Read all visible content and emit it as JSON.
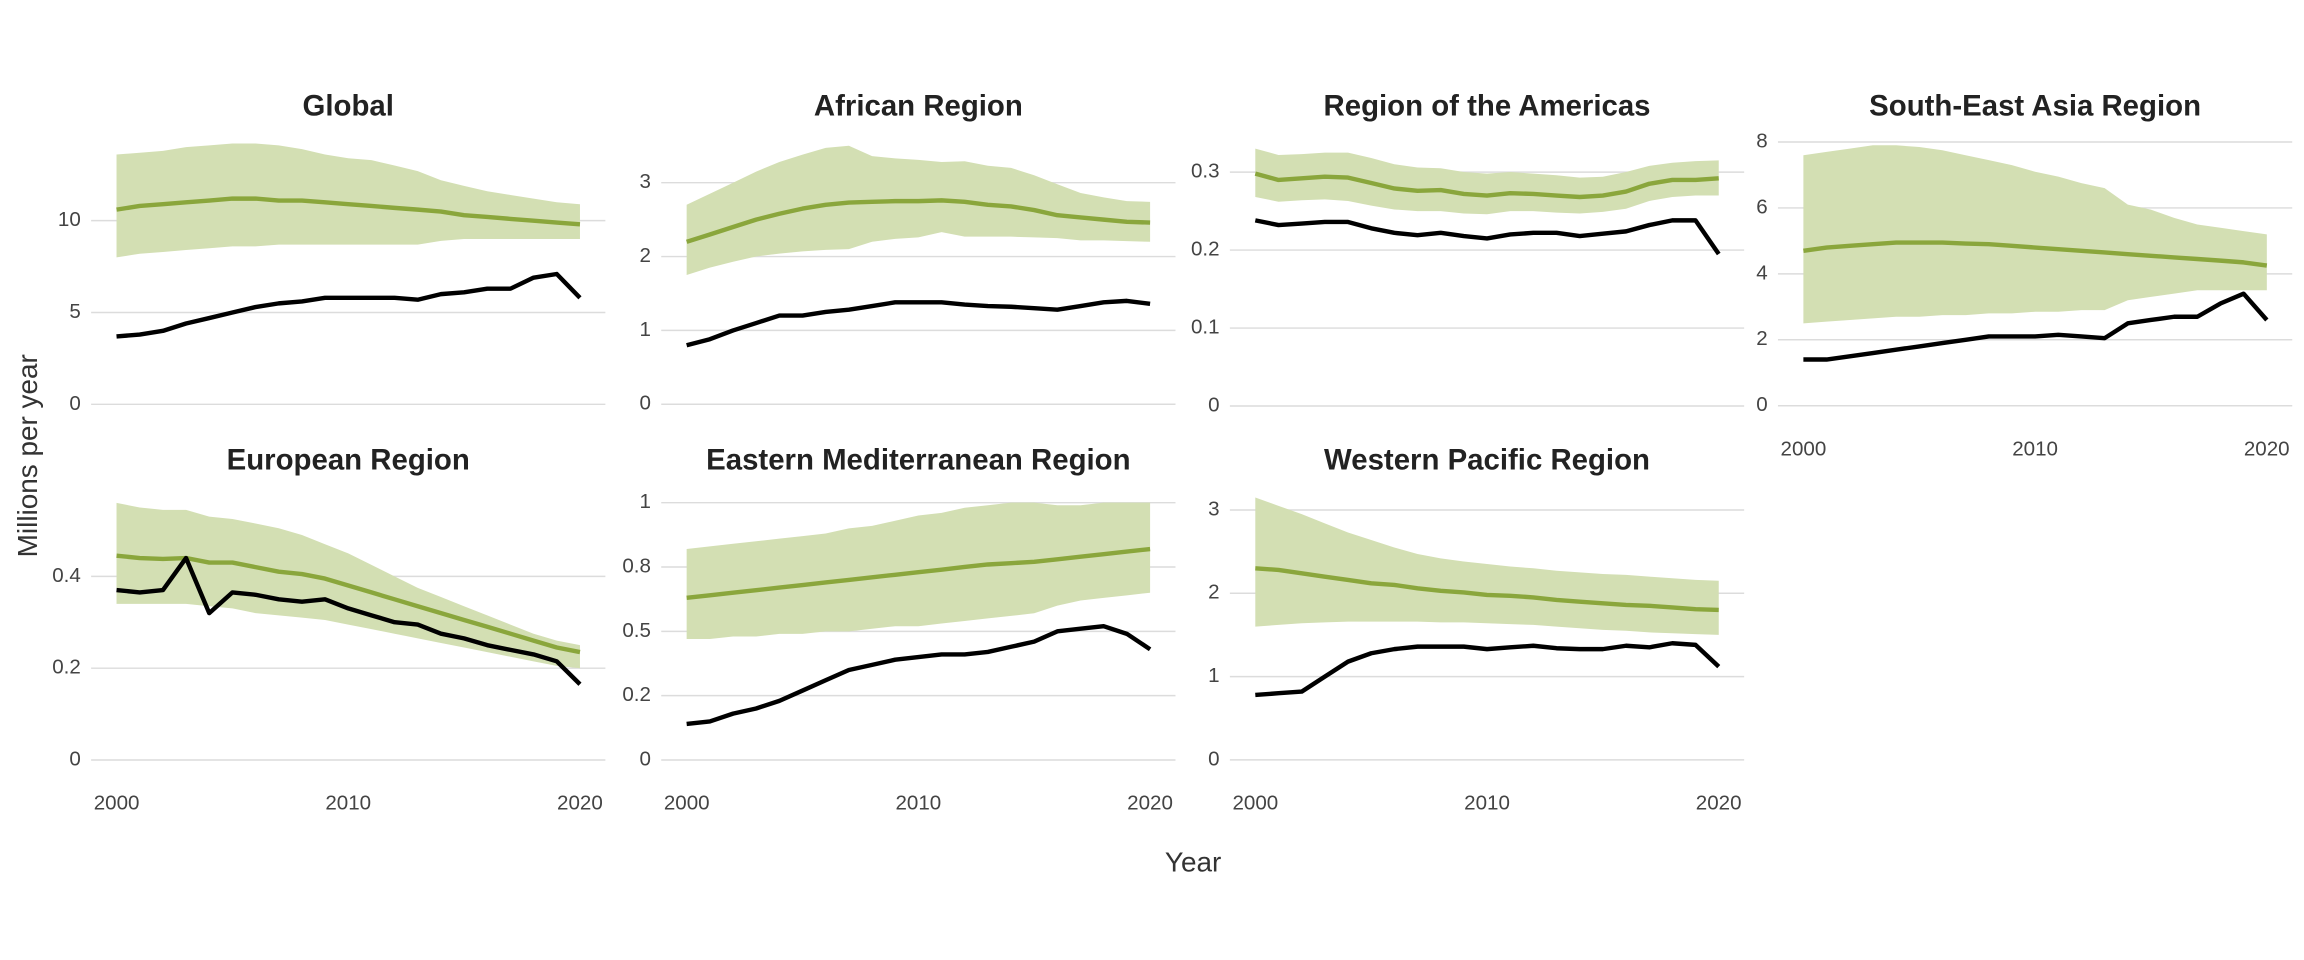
{
  "y_label": "Millions per year",
  "x_label": "Year",
  "chart_data": [
    {
      "type": "line",
      "title": "Global",
      "x": [
        2000,
        2001,
        2002,
        2003,
        2004,
        2005,
        2006,
        2007,
        2008,
        2009,
        2010,
        2011,
        2012,
        2013,
        2014,
        2015,
        2016,
        2017,
        2018,
        2019,
        2020
      ],
      "xlim": [
        1998.9,
        2021.1
      ],
      "ylim": [
        -0.56,
        14.64
      ],
      "yticks": [
        0,
        5,
        10
      ],
      "grid": true,
      "band_color": "#d3dfb3",
      "series": [
        {
          "color": "#8aa63c",
          "values": [
            10.6,
            10.8,
            10.9,
            11.0,
            11.1,
            11.2,
            11.2,
            11.1,
            11.1,
            11.0,
            10.9,
            10.8,
            10.7,
            10.6,
            10.5,
            10.3,
            10.2,
            10.1,
            10.0,
            9.9,
            9.8
          ],
          "lower": [
            8.0,
            8.2,
            8.3,
            8.4,
            8.5,
            8.6,
            8.6,
            8.7,
            8.7,
            8.7,
            8.7,
            8.7,
            8.7,
            8.7,
            8.9,
            9.0,
            9.0,
            9.0,
            9.0,
            9.0,
            9.0
          ],
          "upper": [
            13.6,
            13.7,
            13.8,
            14.0,
            14.1,
            14.2,
            14.2,
            14.1,
            13.9,
            13.6,
            13.4,
            13.3,
            13.0,
            12.7,
            12.2,
            11.9,
            11.6,
            11.4,
            11.2,
            11.0,
            10.9
          ]
        },
        {
          "color": "#000000",
          "values": [
            3.7,
            3.8,
            4.0,
            4.4,
            4.7,
            5.0,
            5.3,
            5.5,
            5.6,
            5.8,
            5.8,
            5.8,
            5.8,
            5.7,
            6.0,
            6.1,
            6.3,
            6.3,
            6.9,
            7.1,
            5.8
          ]
        }
      ]
    },
    {
      "type": "line",
      "title": "African Region",
      "x": [
        2000,
        2001,
        2002,
        2003,
        2004,
        2005,
        2006,
        2007,
        2008,
        2009,
        2010,
        2011,
        2012,
        2013,
        2014,
        2015,
        2016,
        2017,
        2018,
        2019,
        2020
      ],
      "xlim": [
        1998.9,
        2021.1
      ],
      "ylim": [
        -0.14,
        3.64
      ],
      "yticks": [
        0,
        1,
        2,
        3
      ],
      "grid": true,
      "band_color": "#d3dfb3",
      "series": [
        {
          "color": "#8aa63c",
          "values": [
            2.2,
            2.3,
            2.4,
            2.5,
            2.58,
            2.65,
            2.7,
            2.73,
            2.74,
            2.75,
            2.75,
            2.76,
            2.74,
            2.7,
            2.68,
            2.63,
            2.56,
            2.53,
            2.5,
            2.47,
            2.46
          ],
          "lower": [
            1.75,
            1.85,
            1.93,
            2.0,
            2.04,
            2.07,
            2.09,
            2.1,
            2.2,
            2.24,
            2.26,
            2.33,
            2.27,
            2.27,
            2.27,
            2.26,
            2.25,
            2.22,
            2.22,
            2.21,
            2.2
          ],
          "upper": [
            2.7,
            2.85,
            3.0,
            3.15,
            3.28,
            3.38,
            3.47,
            3.5,
            3.36,
            3.33,
            3.31,
            3.28,
            3.29,
            3.23,
            3.2,
            3.1,
            2.98,
            2.86,
            2.8,
            2.75,
            2.74
          ]
        },
        {
          "color": "#000000",
          "values": [
            0.8,
            0.88,
            1.0,
            1.1,
            1.2,
            1.2,
            1.25,
            1.28,
            1.33,
            1.38,
            1.38,
            1.38,
            1.35,
            1.33,
            1.32,
            1.3,
            1.28,
            1.33,
            1.38,
            1.4,
            1.36
          ]
        }
      ]
    },
    {
      "type": "line",
      "title": "Region of the Americas",
      "x": [
        2000,
        2001,
        2002,
        2003,
        2004,
        2005,
        2006,
        2007,
        2008,
        2009,
        2010,
        2011,
        2012,
        2013,
        2014,
        2015,
        2016,
        2017,
        2018,
        2019,
        2020
      ],
      "xlim": [
        1998.9,
        2021.1
      ],
      "ylim": [
        -0.011,
        0.347
      ],
      "yticks": [
        0,
        0.1,
        0.2,
        0.3
      ],
      "grid": true,
      "band_color": "#d3dfb3",
      "series": [
        {
          "color": "#8aa63c",
          "values": [
            0.298,
            0.29,
            0.292,
            0.294,
            0.293,
            0.286,
            0.279,
            0.276,
            0.277,
            0.272,
            0.27,
            0.273,
            0.272,
            0.27,
            0.268,
            0.27,
            0.275,
            0.285,
            0.29,
            0.29,
            0.292
          ],
          "lower": [
            0.268,
            0.262,
            0.264,
            0.265,
            0.263,
            0.257,
            0.252,
            0.25,
            0.25,
            0.247,
            0.246,
            0.25,
            0.25,
            0.248,
            0.247,
            0.249,
            0.253,
            0.263,
            0.268,
            0.27,
            0.27
          ],
          "upper": [
            0.33,
            0.322,
            0.323,
            0.325,
            0.325,
            0.318,
            0.31,
            0.306,
            0.305,
            0.3,
            0.298,
            0.3,
            0.298,
            0.296,
            0.293,
            0.294,
            0.3,
            0.308,
            0.312,
            0.314,
            0.315
          ]
        },
        {
          "color": "#000000",
          "values": [
            0.238,
            0.232,
            0.234,
            0.236,
            0.236,
            0.228,
            0.222,
            0.219,
            0.222,
            0.218,
            0.215,
            0.22,
            0.222,
            0.222,
            0.218,
            0.221,
            0.224,
            0.232,
            0.238,
            0.238,
            0.195
          ]
        }
      ]
    },
    {
      "type": "line",
      "title": "South-East Asia Region",
      "x": [
        2000,
        2001,
        2002,
        2003,
        2004,
        2005,
        2006,
        2007,
        2008,
        2009,
        2010,
        2011,
        2012,
        2013,
        2014,
        2015,
        2016,
        2017,
        2018,
        2019,
        2020
      ],
      "xlim": [
        1998.9,
        2021.1
      ],
      "xticks": [
        2000,
        2010,
        2020
      ],
      "ylim": [
        -0.27,
        8.2
      ],
      "yticks": [
        0,
        2,
        4,
        6,
        8
      ],
      "grid": true,
      "band_color": "#d3dfb3",
      "series": [
        {
          "color": "#8aa63c",
          "values": [
            4.7,
            4.8,
            4.85,
            4.9,
            4.95,
            4.95,
            4.95,
            4.92,
            4.9,
            4.85,
            4.8,
            4.75,
            4.7,
            4.65,
            4.6,
            4.55,
            4.5,
            4.45,
            4.4,
            4.35,
            4.25
          ],
          "lower": [
            2.5,
            2.55,
            2.6,
            2.65,
            2.7,
            2.7,
            2.75,
            2.75,
            2.8,
            2.8,
            2.85,
            2.85,
            2.9,
            2.9,
            3.2,
            3.3,
            3.4,
            3.5,
            3.5,
            3.5,
            3.5
          ],
          "upper": [
            7.6,
            7.7,
            7.8,
            7.9,
            7.9,
            7.85,
            7.75,
            7.6,
            7.45,
            7.3,
            7.1,
            6.95,
            6.75,
            6.6,
            6.1,
            5.95,
            5.7,
            5.5,
            5.4,
            5.3,
            5.2
          ]
        },
        {
          "color": "#000000",
          "values": [
            1.4,
            1.4,
            1.5,
            1.6,
            1.7,
            1.8,
            1.9,
            2.0,
            2.1,
            2.1,
            2.1,
            2.15,
            2.1,
            2.05,
            2.5,
            2.6,
            2.7,
            2.7,
            3.1,
            3.4,
            2.6
          ]
        }
      ]
    },
    {
      "type": "line",
      "title": "European Region",
      "x": [
        2000,
        2001,
        2002,
        2003,
        2004,
        2005,
        2006,
        2007,
        2008,
        2009,
        2010,
        2011,
        2012,
        2013,
        2014,
        2015,
        2016,
        2017,
        2018,
        2019,
        2020
      ],
      "xlim": [
        1998.9,
        2021.1
      ],
      "xticks": [
        2000,
        2010,
        2020
      ],
      "ylim": [
        -0.019,
        0.589
      ],
      "yticks": [
        0,
        0.2,
        0.4
      ],
      "grid": true,
      "band_color": "#d3dfb3",
      "series": [
        {
          "color": "#8aa63c",
          "values": [
            0.445,
            0.44,
            0.438,
            0.44,
            0.43,
            0.43,
            0.42,
            0.41,
            0.405,
            0.395,
            0.38,
            0.365,
            0.35,
            0.335,
            0.32,
            0.305,
            0.29,
            0.275,
            0.26,
            0.245,
            0.235
          ],
          "lower": [
            0.34,
            0.34,
            0.34,
            0.34,
            0.335,
            0.33,
            0.32,
            0.315,
            0.31,
            0.305,
            0.295,
            0.285,
            0.275,
            0.265,
            0.255,
            0.245,
            0.235,
            0.225,
            0.215,
            0.205,
            0.2
          ],
          "upper": [
            0.56,
            0.55,
            0.545,
            0.545,
            0.53,
            0.525,
            0.515,
            0.505,
            0.49,
            0.47,
            0.45,
            0.425,
            0.4,
            0.375,
            0.355,
            0.335,
            0.315,
            0.295,
            0.275,
            0.26,
            0.25
          ]
        },
        {
          "color": "#000000",
          "values": [
            0.37,
            0.365,
            0.37,
            0.44,
            0.32,
            0.365,
            0.36,
            0.35,
            0.345,
            0.35,
            0.33,
            0.315,
            0.3,
            0.295,
            0.275,
            0.265,
            0.25,
            0.24,
            0.23,
            0.215,
            0.165
          ]
        }
      ]
    },
    {
      "type": "line",
      "title": "Eastern Mediterranean Region",
      "x": [
        2000,
        2001,
        2002,
        2003,
        2004,
        2005,
        2006,
        2007,
        2008,
        2009,
        2010,
        2011,
        2012,
        2013,
        2014,
        2015,
        2016,
        2017,
        2018,
        2019,
        2020
      ],
      "xlim": [
        1998.9,
        2021.1
      ],
      "xticks": [
        2000,
        2010,
        2020
      ],
      "ylim": [
        -0.034,
        1.051
      ],
      "yticks": [
        0,
        {
          "value": 0.25,
          "label": "0.2"
        },
        {
          "value": 0.5,
          "label": "0.5"
        },
        {
          "value": 0.75,
          "label": "0.8"
        },
        1
      ],
      "grid": true,
      "band_color": "#d3dfb3",
      "series": [
        {
          "color": "#8aa63c",
          "values": [
            0.63,
            0.64,
            0.65,
            0.66,
            0.67,
            0.68,
            0.69,
            0.7,
            0.71,
            0.72,
            0.73,
            0.74,
            0.75,
            0.76,
            0.765,
            0.77,
            0.78,
            0.79,
            0.8,
            0.81,
            0.82
          ],
          "lower": [
            0.47,
            0.47,
            0.48,
            0.48,
            0.49,
            0.49,
            0.5,
            0.5,
            0.51,
            0.52,
            0.52,
            0.53,
            0.54,
            0.55,
            0.56,
            0.57,
            0.6,
            0.62,
            0.63,
            0.64,
            0.65
          ],
          "upper": [
            0.82,
            0.83,
            0.84,
            0.85,
            0.86,
            0.87,
            0.88,
            0.9,
            0.91,
            0.93,
            0.95,
            0.96,
            0.98,
            0.99,
            1.0,
            1.0,
            0.99,
            0.99,
            1.0,
            1.0,
            1.0
          ]
        },
        {
          "color": "#000000",
          "values": [
            0.14,
            0.15,
            0.18,
            0.2,
            0.23,
            0.27,
            0.31,
            0.35,
            0.37,
            0.39,
            0.4,
            0.41,
            0.41,
            0.42,
            0.44,
            0.46,
            0.5,
            0.51,
            0.52,
            0.49,
            0.43
          ]
        }
      ]
    },
    {
      "type": "line",
      "title": "Western Pacific Region",
      "x": [
        2000,
        2001,
        2002,
        2003,
        2004,
        2005,
        2006,
        2007,
        2008,
        2009,
        2010,
        2011,
        2012,
        2013,
        2014,
        2015,
        2016,
        2017,
        2018,
        2019,
        2020
      ],
      "xlim": [
        1998.9,
        2021.1
      ],
      "xticks": [
        2000,
        2010,
        2020
      ],
      "ylim": [
        -0.106,
        3.245
      ],
      "yticks": [
        0,
        1,
        2,
        3
      ],
      "grid": true,
      "band_color": "#d3dfb3",
      "series": [
        {
          "color": "#8aa63c",
          "values": [
            2.3,
            2.28,
            2.24,
            2.2,
            2.16,
            2.12,
            2.1,
            2.06,
            2.03,
            2.01,
            1.98,
            1.97,
            1.95,
            1.92,
            1.9,
            1.88,
            1.86,
            1.85,
            1.83,
            1.81,
            1.8
          ],
          "lower": [
            1.6,
            1.62,
            1.64,
            1.65,
            1.66,
            1.66,
            1.66,
            1.66,
            1.65,
            1.65,
            1.64,
            1.63,
            1.62,
            1.6,
            1.58,
            1.56,
            1.55,
            1.53,
            1.52,
            1.51,
            1.5
          ],
          "upper": [
            3.15,
            3.05,
            2.95,
            2.84,
            2.73,
            2.64,
            2.55,
            2.47,
            2.42,
            2.38,
            2.35,
            2.32,
            2.3,
            2.27,
            2.25,
            2.23,
            2.22,
            2.2,
            2.18,
            2.16,
            2.15
          ]
        },
        {
          "color": "#000000",
          "values": [
            0.78,
            0.8,
            0.82,
            1.0,
            1.18,
            1.28,
            1.33,
            1.36,
            1.36,
            1.36,
            1.33,
            1.35,
            1.37,
            1.34,
            1.33,
            1.33,
            1.37,
            1.35,
            1.4,
            1.38,
            1.12
          ]
        }
      ]
    }
  ]
}
